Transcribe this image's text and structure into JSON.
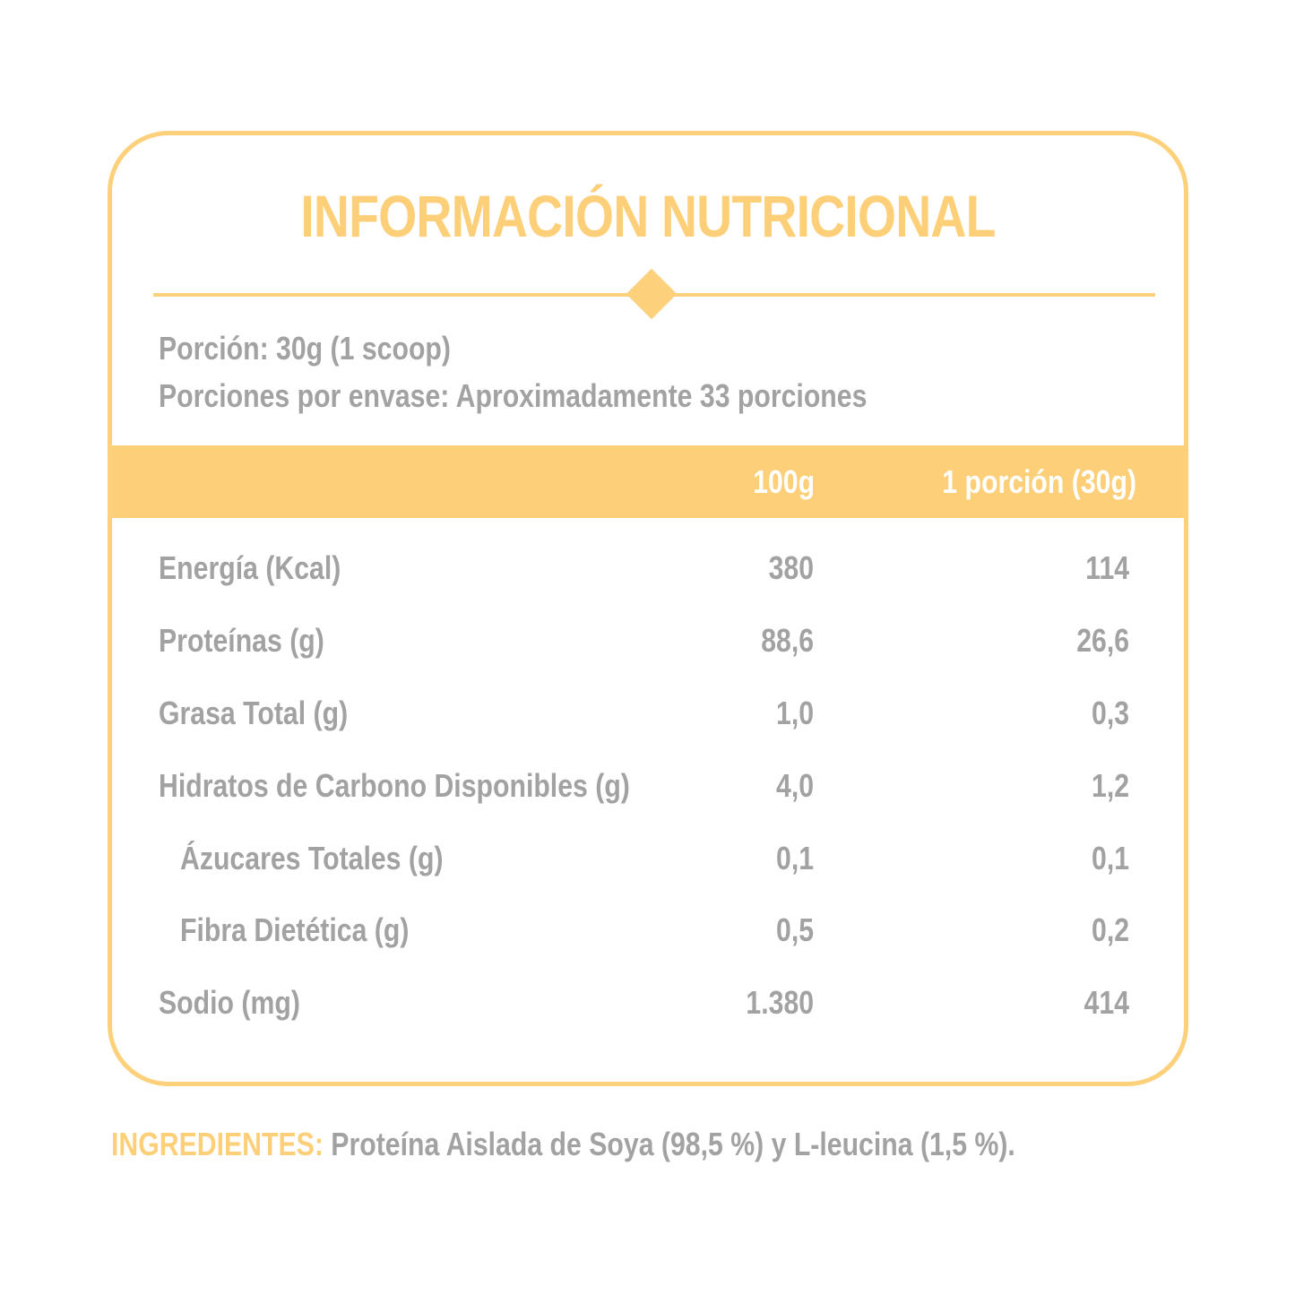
{
  "title": "INFORMACIÓN NUTRICIONAL",
  "serving": {
    "size": "Porción: 30g (1 scoop)",
    "per_container": "Porciones por envase: Aproximadamente 33 porciones"
  },
  "table": {
    "columns": [
      "100g",
      "1 porción (30g)"
    ],
    "rows": [
      {
        "label": "Energía (Kcal)",
        "per100": "380",
        "perPortion": "114"
      },
      {
        "label": "Proteínas (g)",
        "per100": "88,6",
        "perPortion": "26,6"
      },
      {
        "label": "Grasa Total (g)",
        "per100": "1,0",
        "perPortion": "0,3"
      },
      {
        "label": "Hidratos de Carbono Disponibles (g)",
        "per100": "4,0",
        "perPortion": "1,2"
      },
      {
        "label": "Ázucares Totales (g)",
        "per100": "0,1",
        "perPortion": "0,1"
      },
      {
        "label": "Fibra Dietética (g)",
        "per100": "0,5",
        "perPortion": "0,2"
      },
      {
        "label": "Sodio (mg)",
        "per100": "1.380",
        "perPortion": "414"
      }
    ]
  },
  "ingredients": {
    "label": "INGREDIENTES:",
    "text": " Proteína Aislada de Soya (98,5 %) y L-leucina (1,5 %)."
  },
  "colors": {
    "accent": "#fdcf79",
    "text": "#a2a2a2",
    "background": "#ffffff"
  }
}
